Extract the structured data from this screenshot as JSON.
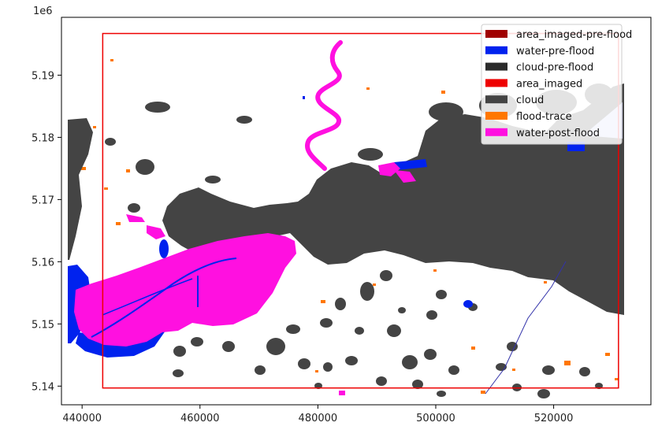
{
  "chart_data": {
    "type": "map",
    "axis_offset_label": "1e6",
    "xlim": [
      436500,
      536500
    ],
    "ylim": [
      5137000,
      5199300
    ],
    "x_ticks": [
      440000,
      460000,
      480000,
      500000,
      520000
    ],
    "x_tick_labels": [
      "440000",
      "460000",
      "480000",
      "500000",
      "520000"
    ],
    "y_ticks": [
      5140000,
      5150000,
      5160000,
      5170000,
      5180000,
      5190000
    ],
    "y_tick_labels": [
      "5.14",
      "5.15",
      "5.16",
      "5.17",
      "5.18",
      "5.19"
    ],
    "area_imaged_extent": {
      "x": [
        443500,
        531000
      ],
      "y": [
        5139700,
        5196700
      ]
    },
    "legend": {
      "placement": "top-right",
      "entries": [
        {
          "label": "area_imaged-pre-flood",
          "color": "#a00000"
        },
        {
          "label": "water-pre-flood",
          "color": "#0022ee"
        },
        {
          "label": "cloud-pre-flood",
          "color": "#2a2a2a"
        },
        {
          "label": "area_imaged",
          "color": "#ee0000"
        },
        {
          "label": "cloud",
          "color": "#444444"
        },
        {
          "label": "flood-trace",
          "color": "#ff7700"
        },
        {
          "label": "water-post-flood",
          "color": "#ff10e0"
        }
      ]
    }
  }
}
